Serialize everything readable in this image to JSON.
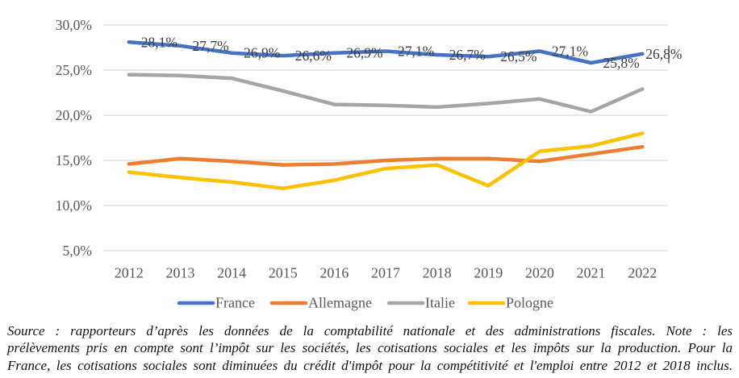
{
  "chart_data": {
    "type": "line",
    "title": "",
    "xlabel": "",
    "ylabel": "",
    "categories": [
      "2012",
      "2013",
      "2014",
      "2015",
      "2016",
      "2017",
      "2018",
      "2019",
      "2020",
      "2021",
      "2022"
    ],
    "y_tick_labels": [
      "30,0%",
      "25,0%",
      "20,0%",
      "15,0%",
      "10,0%",
      "5,0%"
    ],
    "y_tick_values": [
      30,
      25,
      20,
      15,
      10,
      5
    ],
    "ylim": [
      5,
      30
    ],
    "grid": true,
    "legend_position": "bottom",
    "series": [
      {
        "name": "France",
        "color": "#4472C4",
        "values": [
          28.1,
          27.7,
          26.9,
          26.6,
          26.9,
          27.1,
          26.7,
          26.5,
          27.1,
          25.8,
          26.8
        ],
        "data_labels": [
          "28,1%",
          "27,7%",
          "26,9%",
          "26,6%",
          "26,9%",
          "27,1%",
          "26,7%",
          "26,5%",
          "27,1%",
          "25,8%",
          "26,8%"
        ]
      },
      {
        "name": "Allemagne",
        "color": "#ED7D31",
        "values": [
          14.6,
          15.2,
          14.9,
          14.5,
          14.6,
          15.0,
          15.2,
          15.2,
          14.9,
          15.7,
          16.5
        ]
      },
      {
        "name": "Italie",
        "color": "#A5A5A5",
        "values": [
          24.5,
          24.4,
          24.1,
          22.7,
          21.2,
          21.1,
          20.9,
          21.3,
          21.8,
          20.4,
          22.9
        ]
      },
      {
        "name": "Pologne",
        "color": "#FFC000",
        "values": [
          13.7,
          13.1,
          12.6,
          11.9,
          12.8,
          14.1,
          14.5,
          12.2,
          16.0,
          16.6,
          18.0
        ]
      }
    ],
    "text_caret_visible": true
  },
  "legend": {
    "items": [
      "France",
      "Allemagne",
      "Italie",
      "Pologne"
    ]
  },
  "source_note": {
    "lines": [
      "Source : rapporteurs d’après les données de la comptabilité nationale et des administrations fiscales. Note : les",
      "prélèvements pris en compte sont l’impôt sur les sociétés, les cotisations sociales et les impôts sur la production. Pour la",
      "France, les cotisations sociales sont diminuées du crédit d'impôt pour la compétitivité et l'emploi entre 2012 et 2018 inclus."
    ]
  },
  "colors": {
    "gridline": "#D9D9D9",
    "axis_text": "#595959",
    "data_label_text": "#3D3D3D",
    "caret": "#3F3F3F"
  }
}
